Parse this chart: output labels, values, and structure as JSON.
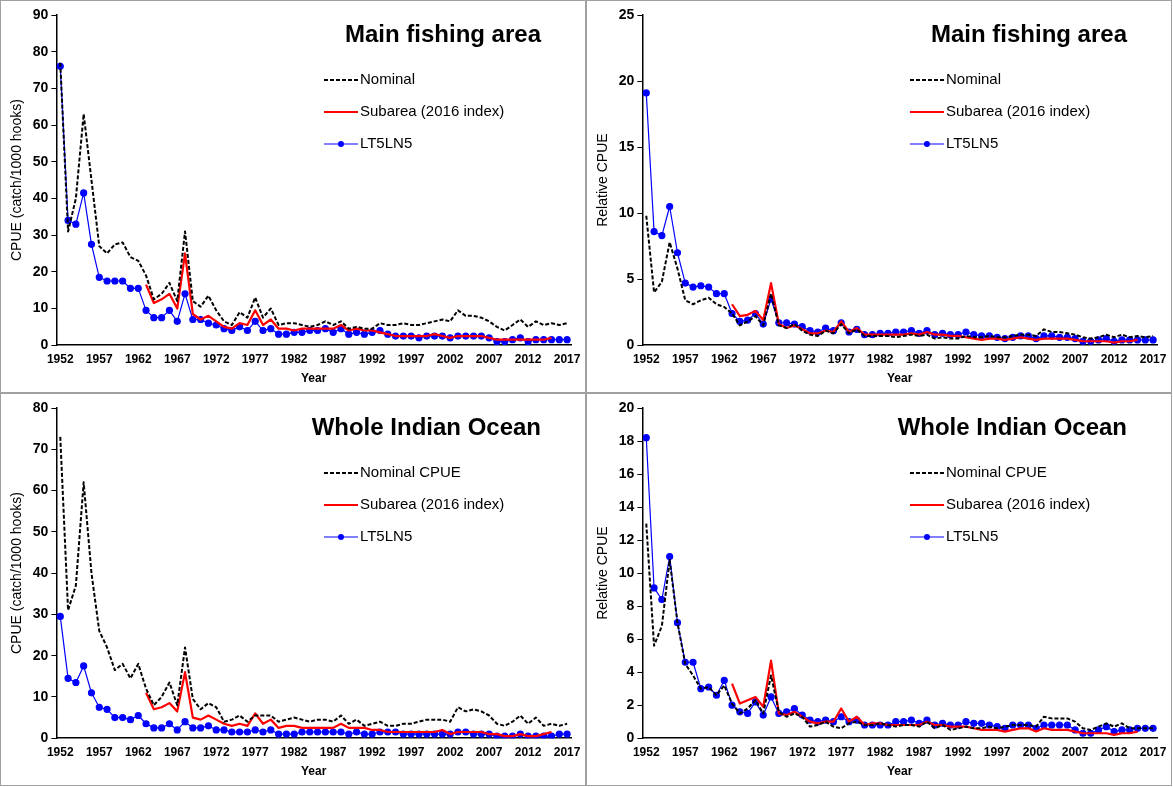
{
  "chart_data": [
    {
      "type": "line",
      "title": "Main fishing area",
      "xlabel": "Year",
      "ylabel": "CPUE (catch/1000 hooks)",
      "legend": "top right",
      "x": [
        1952,
        1953,
        1954,
        1955,
        1956,
        1957,
        1958,
        1959,
        1960,
        1961,
        1962,
        1963,
        1964,
        1965,
        1966,
        1967,
        1968,
        1969,
        1970,
        1971,
        1972,
        1973,
        1974,
        1975,
        1976,
        1977,
        1978,
        1979,
        1980,
        1981,
        1982,
        1983,
        1984,
        1985,
        1986,
        1987,
        1988,
        1989,
        1990,
        1991,
        1992,
        1993,
        1994,
        1995,
        1996,
        1997,
        1998,
        1999,
        2000,
        2001,
        2002,
        2003,
        2004,
        2005,
        2006,
        2007,
        2008,
        2009,
        2010,
        2011,
        2012,
        2013,
        2014,
        2015,
        2016,
        2017
      ],
      "xlim": [
        1951.5,
        2017.5
      ],
      "xticks": [
        1952,
        1957,
        1962,
        1967,
        1972,
        1977,
        1982,
        1987,
        1992,
        1997,
        2002,
        2007,
        2012,
        2017
      ],
      "ylim": [
        0,
        90
      ],
      "yticks": [
        0,
        10,
        20,
        30,
        40,
        50,
        60,
        70,
        80,
        90
      ],
      "series": [
        {
          "name": "Nominal",
          "color": "#000000",
          "line_style": "dashed",
          "marker": "none",
          "values": [
            77,
            31,
            40,
            63,
            45,
            27,
            25,
            27.5,
            28,
            24,
            23,
            19,
            12.5,
            14,
            17,
            12,
            31,
            12,
            10.5,
            13.5,
            9.5,
            6.5,
            5.5,
            9,
            7.5,
            13,
            7.5,
            10,
            5.5,
            6,
            6,
            5.5,
            5,
            5.5,
            6.5,
            5.5,
            6.5,
            4.5,
            5,
            4.5,
            4.5,
            6,
            5.5,
            5.5,
            6,
            5.5,
            5.5,
            6,
            6.5,
            7,
            6.5,
            9.5,
            8,
            8,
            7.5,
            6.5,
            5,
            4,
            5.5,
            7,
            5,
            6.5,
            5.5,
            6,
            5.5,
            6
          ]
        },
        {
          "name": "Subarea (2016 index)",
          "color": "#ff0000",
          "line_style": "solid",
          "marker": "none",
          "values": [
            null,
            null,
            null,
            null,
            null,
            null,
            null,
            null,
            null,
            null,
            null,
            16.5,
            11.5,
            12.5,
            14,
            10,
            25,
            8.5,
            7,
            8,
            6.5,
            5,
            4.5,
            6,
            5.5,
            9.5,
            5.5,
            7,
            4.5,
            4.5,
            4,
            4.5,
            4.5,
            4.5,
            4.5,
            4.5,
            5.5,
            4,
            4.5,
            4,
            4,
            3.5,
            3,
            2.5,
            2.5,
            2.5,
            2.5,
            2.5,
            3,
            2.5,
            2,
            2.5,
            2.5,
            2.5,
            2.5,
            2,
            1.5,
            1.5,
            1.5,
            1.5,
            1.5,
            1.5,
            1.5,
            2,
            null,
            null
          ]
        },
        {
          "name": "LT5LN5",
          "color": "#0000ff",
          "line_style": "solid",
          "marker": "circle",
          "values": [
            76,
            34,
            33,
            41.5,
            27.5,
            18.5,
            17.5,
            17.5,
            17.5,
            15.5,
            15.5,
            9.5,
            7.5,
            7.5,
            9.5,
            6.5,
            14,
            7,
            7,
            6,
            5.5,
            4.5,
            4,
            5,
            4,
            6.5,
            4,
            4.5,
            3,
            3,
            3.5,
            3.5,
            4,
            4,
            4.5,
            3.5,
            4.5,
            3,
            3.5,
            3,
            3.5,
            4,
            3,
            2.5,
            2.5,
            2.5,
            2,
            2.5,
            2.5,
            2.5,
            2,
            2.5,
            2.5,
            2.5,
            2.5,
            2,
            1,
            1,
            1.5,
            2,
            1,
            1.5,
            1.5,
            1.5,
            1.5,
            1.5
          ]
        }
      ]
    },
    {
      "type": "line",
      "title": "Main fishing area",
      "xlabel": "Year",
      "ylabel": "Relative CPUE",
      "legend": "top right",
      "x": [
        1952,
        1953,
        1954,
        1955,
        1956,
        1957,
        1958,
        1959,
        1960,
        1961,
        1962,
        1963,
        1964,
        1965,
        1966,
        1967,
        1968,
        1969,
        1970,
        1971,
        1972,
        1973,
        1974,
        1975,
        1976,
        1977,
        1978,
        1979,
        1980,
        1981,
        1982,
        1983,
        1984,
        1985,
        1986,
        1987,
        1988,
        1989,
        1990,
        1991,
        1992,
        1993,
        1994,
        1995,
        1996,
        1997,
        1998,
        1999,
        2000,
        2001,
        2002,
        2003,
        2004,
        2005,
        2006,
        2007,
        2008,
        2009,
        2010,
        2011,
        2012,
        2013,
        2014,
        2015,
        2016,
        2017
      ],
      "xlim": [
        1951.5,
        2017.5
      ],
      "xticks": [
        1952,
        1957,
        1962,
        1967,
        1972,
        1977,
        1982,
        1987,
        1992,
        1997,
        2002,
        2007,
        2012,
        2017
      ],
      "ylim": [
        0,
        25
      ],
      "yticks": [
        0,
        5,
        10,
        15,
        20,
        25
      ],
      "series": [
        {
          "name": "Nominal",
          "color": "#000000",
          "line_style": "dashed",
          "marker": "none",
          "values": [
            9.8,
            4,
            4.8,
            7.8,
            5.8,
            3.4,
            3.1,
            3.4,
            3.6,
            3.1,
            2.9,
            2.4,
            1.5,
            1.8,
            2.2,
            1.5,
            3.9,
            1.5,
            1.3,
            1.6,
            1.1,
            0.8,
            0.7,
            1.1,
            0.9,
            1.6,
            0.9,
            1.2,
            0.7,
            0.7,
            0.7,
            0.7,
            0.6,
            0.7,
            0.8,
            0.7,
            0.8,
            0.5,
            0.6,
            0.5,
            0.5,
            0.7,
            0.6,
            0.6,
            0.7,
            0.6,
            0.6,
            0.7,
            0.8,
            0.8,
            0.7,
            1.2,
            1,
            1,
            0.9,
            0.8,
            0.6,
            0.5,
            0.6,
            0.8,
            0.6,
            0.8,
            0.6,
            0.7,
            0.6,
            0.7
          ]
        },
        {
          "name": "Subarea (2016 index)",
          "color": "#ff0000",
          "line_style": "solid",
          "marker": "none",
          "values": [
            null,
            null,
            null,
            null,
            null,
            null,
            null,
            null,
            null,
            null,
            null,
            3.1,
            2.2,
            2.3,
            2.6,
            1.9,
            4.7,
            1.6,
            1.3,
            1.5,
            1.2,
            0.9,
            0.9,
            1.1,
            1,
            1.8,
            1,
            1.3,
            0.8,
            0.8,
            0.8,
            0.8,
            0.8,
            0.8,
            0.9,
            0.8,
            1,
            0.8,
            0.8,
            0.7,
            0.7,
            0.6,
            0.5,
            0.4,
            0.5,
            0.5,
            0.4,
            0.5,
            0.6,
            0.5,
            0.4,
            0.5,
            0.5,
            0.5,
            0.5,
            0.4,
            0.3,
            0.3,
            0.3,
            0.3,
            0.2,
            0.3,
            0.3,
            0.4,
            null,
            null
          ]
        },
        {
          "name": "LT5LN5",
          "color": "#0000ff",
          "line_style": "solid",
          "marker": "circle",
          "values": [
            19.1,
            8.6,
            8.3,
            10.5,
            7,
            4.7,
            4.4,
            4.5,
            4.4,
            3.9,
            3.9,
            2.4,
            1.8,
            1.9,
            2.4,
            1.6,
            3.5,
            1.7,
            1.7,
            1.6,
            1.4,
            1.1,
            1,
            1.3,
            1.1,
            1.7,
            1,
            1.2,
            0.8,
            0.8,
            0.9,
            0.9,
            1,
            1,
            1.1,
            0.9,
            1.1,
            0.8,
            0.9,
            0.8,
            0.8,
            1,
            0.8,
            0.7,
            0.7,
            0.6,
            0.5,
            0.6,
            0.7,
            0.7,
            0.5,
            0.7,
            0.7,
            0.6,
            0.6,
            0.5,
            0.3,
            0.3,
            0.4,
            0.5,
            0.3,
            0.4,
            0.4,
            0.4,
            0.4,
            0.4
          ]
        }
      ]
    },
    {
      "type": "line",
      "title": "Whole Indian Ocean",
      "xlabel": "Year",
      "ylabel": "CPUE (catch/1000 hooks)",
      "legend": "top right",
      "x": [
        1952,
        1953,
        1954,
        1955,
        1956,
        1957,
        1958,
        1959,
        1960,
        1961,
        1962,
        1963,
        1964,
        1965,
        1966,
        1967,
        1968,
        1969,
        1970,
        1971,
        1972,
        1973,
        1974,
        1975,
        1976,
        1977,
        1978,
        1979,
        1980,
        1981,
        1982,
        1983,
        1984,
        1985,
        1986,
        1987,
        1988,
        1989,
        1990,
        1991,
        1992,
        1993,
        1994,
        1995,
        1996,
        1997,
        1998,
        1999,
        2000,
        2001,
        2002,
        2003,
        2004,
        2005,
        2006,
        2007,
        2008,
        2009,
        2010,
        2011,
        2012,
        2013,
        2014,
        2015,
        2016,
        2017
      ],
      "xlim": [
        1951.5,
        2017.5
      ],
      "xticks": [
        1952,
        1957,
        1962,
        1967,
        1972,
        1977,
        1982,
        1987,
        1992,
        1997,
        2002,
        2007,
        2012,
        2017
      ],
      "ylim": [
        0,
        80
      ],
      "yticks": [
        0,
        10,
        20,
        30,
        40,
        50,
        60,
        70,
        80
      ],
      "series": [
        {
          "name": "Nominal CPUE",
          "color": "#000000",
          "line_style": "dashed",
          "marker": "none",
          "values": [
            73,
            31,
            37,
            62,
            40,
            26,
            22,
            16.5,
            18,
            14.5,
            18,
            12,
            8,
            10,
            13.5,
            8,
            22,
            9.5,
            7,
            8.5,
            7.5,
            4,
            4.5,
            5.5,
            4,
            5.5,
            5.5,
            5.5,
            4,
            4.5,
            5,
            4.5,
            4,
            4.5,
            4.5,
            4,
            5.5,
            3.5,
            4.5,
            3,
            3.5,
            4,
            3,
            3,
            3.5,
            3.5,
            4,
            4.5,
            4.5,
            4.5,
            4,
            7.5,
            6.5,
            7,
            6.5,
            5.5,
            3.5,
            3,
            4,
            5.5,
            3.5,
            5,
            3,
            3.5,
            3,
            3.5
          ]
        },
        {
          "name": "Subarea (2016 index)",
          "color": "#ff0000",
          "line_style": "solid",
          "marker": "none",
          "values": [
            null,
            null,
            null,
            null,
            null,
            null,
            null,
            null,
            null,
            null,
            null,
            11,
            7,
            7.5,
            8.5,
            6.5,
            16,
            5,
            4.5,
            5.5,
            4.5,
            3.5,
            3,
            3.5,
            3,
            6,
            3.5,
            4.5,
            2.5,
            3,
            3,
            2.5,
            2.5,
            2.5,
            2.5,
            2.5,
            3.5,
            2.5,
            2.5,
            2.5,
            2,
            2,
            1.5,
            1.5,
            1.5,
            1.5,
            1.5,
            1.5,
            1.5,
            2,
            1,
            1.5,
            1.5,
            1.5,
            1.5,
            1,
            1,
            0.5,
            0.5,
            1,
            0.5,
            0.5,
            1,
            1.5,
            null,
            null
          ]
        },
        {
          "name": "LT5LN5",
          "color": "#0000ff",
          "line_style": "solid",
          "marker": "circle",
          "values": [
            29.5,
            14.5,
            13.5,
            17.5,
            11,
            7.5,
            7,
            5,
            5,
            4.5,
            5.5,
            3.5,
            2.5,
            2.5,
            3.5,
            2,
            4,
            2.5,
            2.5,
            3,
            2,
            2,
            1.5,
            1.5,
            1.5,
            2,
            1.5,
            2,
            1,
            1,
            1,
            1.5,
            1.5,
            1.5,
            1.5,
            1.5,
            1.5,
            1,
            1.5,
            1,
            1,
            1.5,
            1.5,
            1.5,
            1,
            1,
            1,
            1,
            1,
            1,
            1,
            1.5,
            1.5,
            1,
            1,
            1,
            0.5,
            0.5,
            0.5,
            1,
            0.5,
            0.5,
            0.5,
            0.5,
            1,
            1
          ]
        }
      ]
    },
    {
      "type": "line",
      "title": "Whole Indian Ocean",
      "xlabel": "Year",
      "ylabel": "Relative CPUE",
      "legend": "top right",
      "x": [
        1952,
        1953,
        1954,
        1955,
        1956,
        1957,
        1958,
        1959,
        1960,
        1961,
        1962,
        1963,
        1964,
        1965,
        1966,
        1967,
        1968,
        1969,
        1970,
        1971,
        1972,
        1973,
        1974,
        1975,
        1976,
        1977,
        1978,
        1979,
        1980,
        1981,
        1982,
        1983,
        1984,
        1985,
        1986,
        1987,
        1988,
        1989,
        1990,
        1991,
        1992,
        1993,
        1994,
        1995,
        1996,
        1997,
        1998,
        1999,
        2000,
        2001,
        2002,
        2003,
        2004,
        2005,
        2006,
        2007,
        2008,
        2009,
        2010,
        2011,
        2012,
        2013,
        2014,
        2015,
        2016,
        2017
      ],
      "xlim": [
        1951.5,
        2017.5
      ],
      "xticks": [
        1952,
        1957,
        1962,
        1967,
        1972,
        1977,
        1982,
        1987,
        1992,
        1997,
        2002,
        2007,
        2012,
        2017
      ],
      "ylim": [
        0,
        20
      ],
      "yticks": [
        0,
        2,
        4,
        6,
        8,
        10,
        12,
        14,
        16,
        18,
        20
      ],
      "series": [
        {
          "name": "Nominal CPUE",
          "color": "#000000",
          "line_style": "dashed",
          "marker": "none",
          "values": [
            13,
            5.6,
            6.8,
            10.8,
            7,
            4.5,
            3.8,
            3,
            3.1,
            2.6,
            3.2,
            2.1,
            1.5,
            1.8,
            2.3,
            1.5,
            3.8,
            1.6,
            1.3,
            1.5,
            1.3,
            0.7,
            0.8,
            1,
            0.7,
            0.6,
            0.9,
            1,
            0.8,
            0.8,
            0.9,
            0.8,
            0.7,
            0.8,
            0.8,
            0.7,
            1,
            0.6,
            0.8,
            0.5,
            0.6,
            0.7,
            0.6,
            0.6,
            0.7,
            0.6,
            0.7,
            0.8,
            0.8,
            0.8,
            0.7,
            1.3,
            1.2,
            1.2,
            1.2,
            1,
            0.6,
            0.5,
            0.7,
            0.9,
            0.7,
            0.9,
            0.6,
            0.6,
            0.6,
            0.6
          ]
        },
        {
          "name": "Subarea (2016 index)",
          "color": "#ff0000",
          "line_style": "solid",
          "marker": "none",
          "values": [
            null,
            null,
            null,
            null,
            null,
            null,
            null,
            null,
            null,
            null,
            null,
            3.3,
            2.1,
            2.3,
            2.5,
            1.9,
            4.7,
            1.5,
            1.4,
            1.6,
            1.3,
            1,
            0.9,
            1,
            1,
            1.8,
            1,
            1.3,
            0.8,
            0.9,
            0.9,
            0.8,
            0.8,
            0.8,
            0.8,
            0.8,
            1,
            0.8,
            0.8,
            0.7,
            0.7,
            0.7,
            0.6,
            0.5,
            0.5,
            0.5,
            0.4,
            0.5,
            0.6,
            0.6,
            0.4,
            0.6,
            0.5,
            0.5,
            0.5,
            0.4,
            0.3,
            0.3,
            0.3,
            0.3,
            0.2,
            0.3,
            0.3,
            0.4,
            null,
            null
          ]
        },
        {
          "name": "LT5LN5",
          "color": "#0000ff",
          "line_style": "solid",
          "marker": "circle",
          "values": [
            18.2,
            9.1,
            8.4,
            11,
            7,
            4.6,
            4.6,
            3,
            3.1,
            2.6,
            3.5,
            2,
            1.6,
            1.5,
            2.2,
            1.4,
            2.5,
            1.5,
            1.6,
            1.8,
            1.4,
            1.1,
            1,
            1.1,
            1,
            1.3,
            1,
            1.1,
            0.8,
            0.8,
            0.8,
            0.8,
            1,
            1,
            1.1,
            0.9,
            1.1,
            0.8,
            0.9,
            0.8,
            0.8,
            1,
            0.9,
            0.9,
            0.8,
            0.7,
            0.6,
            0.8,
            0.8,
            0.8,
            0.6,
            0.8,
            0.8,
            0.8,
            0.8,
            0.5,
            0.3,
            0.3,
            0.5,
            0.7,
            0.4,
            0.5,
            0.5,
            0.6,
            0.6,
            0.6
          ]
        }
      ]
    }
  ]
}
